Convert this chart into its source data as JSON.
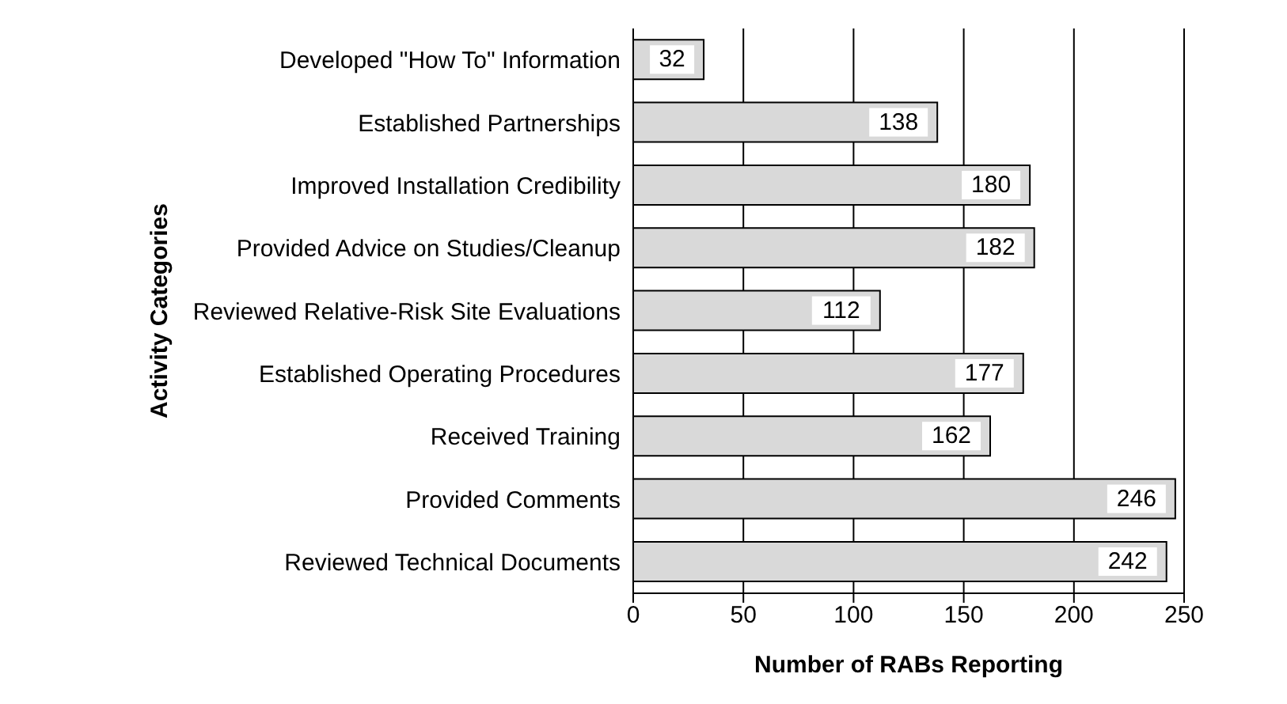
{
  "chart_data": {
    "type": "bar",
    "orientation": "horizontal",
    "categories": [
      "Developed \"How To\" Information",
      "Established Partnerships",
      "Improved Installation Credibility",
      "Provided Advice on Studies/Cleanup",
      "Reviewed Relative-Risk Site Evaluations",
      "Established Operating Procedures",
      "Received Training",
      "Provided Comments",
      "Reviewed Technical Documents"
    ],
    "values": [
      32,
      138,
      180,
      182,
      112,
      177,
      162,
      246,
      242
    ],
    "color": "#d9d9d9",
    "xlim": [
      0,
      250
    ],
    "xticks": [
      0,
      50,
      100,
      150,
      200,
      250
    ],
    "xlabel": "Number of RABs Reporting",
    "ylabel": "Activity Categories",
    "grid": "x",
    "data_labels": true
  }
}
